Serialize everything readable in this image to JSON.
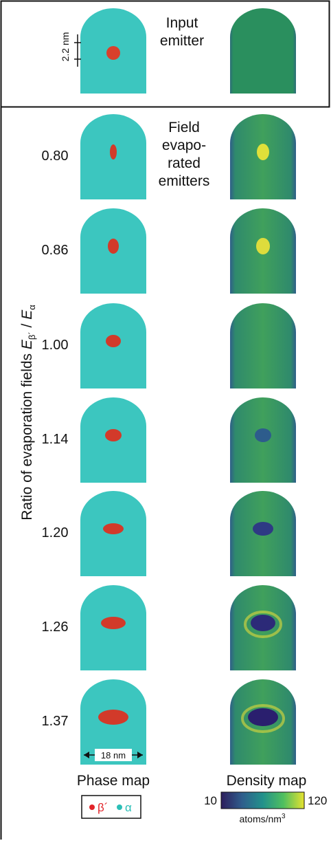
{
  "input_panel": {
    "title_lines": [
      "Input",
      "emitter"
    ],
    "scale_label": "2.2 nm"
  },
  "field_panel": {
    "title_lines": [
      "Field",
      "evapo-",
      "rated",
      "emitters"
    ],
    "row_labels": [
      "0.80",
      "0.86",
      "1.00",
      "1.14",
      "1.20",
      "1.26",
      "1.37"
    ],
    "y_axis_label": {
      "text": "Ratio of evaporation fields",
      "symbol": "E",
      "sub1": "β´",
      "sep": "/",
      "sub2": "α"
    }
  },
  "footer": {
    "width_label": "18 nm",
    "phase_title": "Phase map",
    "density_title": "Density map",
    "legend": [
      "β´",
      "α"
    ],
    "colorbar": {
      "min": 10,
      "max": 120,
      "unit": "atoms/nm",
      "unit_sup": "3"
    }
  }
}
